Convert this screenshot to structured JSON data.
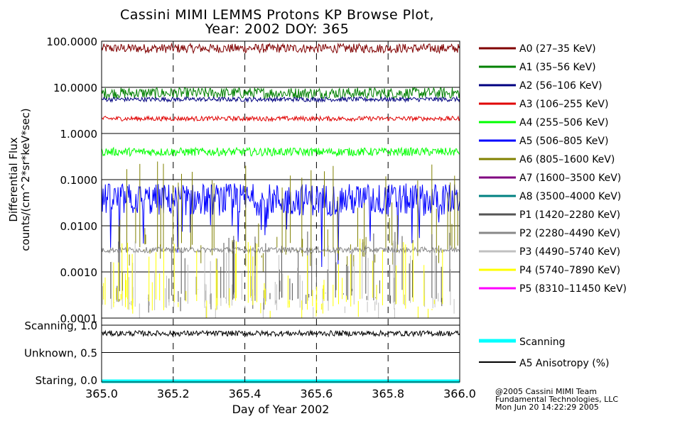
{
  "colors": {
    "background": "#ffffff",
    "axis": "#000000",
    "A0": "#800000",
    "A1": "#008000",
    "A2": "#000080",
    "A3": "#e00000",
    "A4": "#00ff00",
    "A5": "#0000ff",
    "A6": "#808000",
    "A7": "#800080",
    "A8": "#008080",
    "P1": "#555555",
    "P2": "#888888",
    "P3": "#c0c0c0",
    "P4": "#ffff00",
    "P5": "#ff00ff",
    "scanning": "#00ffff",
    "anisotropy": "#000000"
  },
  "chart_data": [
    {
      "type": "line",
      "title": "Cassini MIMI LEMMS Protons KP Browse Plot,",
      "subtitle": "Year: 2002 DOY: 365",
      "ylabel_line1": "Differential Flux",
      "ylabel_line2": "counts/(cm^2*sr*keV*sec)",
      "yscale": "log",
      "ylim": [
        0.0001,
        100
      ],
      "ytick_values": [
        100,
        10,
        1,
        0.1,
        0.01,
        0.001,
        0.0001
      ],
      "ytick_labels": [
        "100.0000",
        "10.0000",
        "1.0000",
        "0.1000",
        "0.0100",
        "0.0010",
        "0.0001"
      ],
      "xlim": [
        365.0,
        366.0
      ],
      "grid": true,
      "legend_position": "right",
      "series": [
        {
          "key": "A0",
          "name": "A0 (27–35 KeV)",
          "level": 70,
          "spread": 0.1
        },
        {
          "key": "A1",
          "name": "A1 (35–56 KeV)",
          "level": 7.5,
          "spread": 0.12
        },
        {
          "key": "A2",
          "name": "A2 (56–106 KeV)",
          "level": 5.5,
          "spread": 0.05
        },
        {
          "key": "A3",
          "name": "A3 (106–255 KeV)",
          "level": 2.1,
          "spread": 0.05
        },
        {
          "key": "A4",
          "name": "A4 (255–506 KeV)",
          "level": 0.4,
          "spread": 0.09
        },
        {
          "key": "A5",
          "name": "A5 (506–805 KeV)",
          "level": 0.04,
          "spread": 0.35
        },
        {
          "key": "A6",
          "name": "A6 (805–1600 KeV)",
          "level": 0.003,
          "spread": 0.4
        },
        {
          "key": "A7",
          "name": "A7 (1600–3500 KeV)",
          "level": null,
          "spread": 0
        },
        {
          "key": "A8",
          "name": "A8 (3500–4000 KeV)",
          "level": null,
          "spread": 0
        },
        {
          "key": "P1",
          "name": "P1 (1420–2280 KeV)",
          "level": 0.0003,
          "spread": 0.3
        },
        {
          "key": "P2",
          "name": "P2 (2280–4490 KeV)",
          "level": 0.003,
          "spread": 0.06
        },
        {
          "key": "P3",
          "name": "P3 (4490–5740 KeV)",
          "level": 0.0002,
          "spread": 0.3
        },
        {
          "key": "P4",
          "name": "P4 (5740–7890 KeV)",
          "level": 0.0002,
          "spread": 0.3
        },
        {
          "key": "P5",
          "name": "P5 (8310–11450 KeV)",
          "level": null,
          "spread": 0
        }
      ]
    },
    {
      "type": "line",
      "xlabel": "Day of Year 2002",
      "xlim": [
        365.0,
        366.0
      ],
      "xtick_values": [
        365.0,
        365.2,
        365.4,
        365.6,
        365.8,
        366.0
      ],
      "xtick_labels": [
        "365.0",
        "365.2",
        "365.4",
        "365.6",
        "365.8",
        "366.0"
      ],
      "ylim": [
        0,
        1.0
      ],
      "ytick_values": [
        1.0,
        0.5,
        0.0
      ],
      "ytick_labels": [
        "Scanning, 1.0",
        "Unknown, 0.5",
        "Staring, 0.0"
      ],
      "grid": true,
      "legend_position": "right",
      "series": [
        {
          "key": "scanning",
          "name": "Scanning",
          "value": 0.0
        },
        {
          "key": "anisotropy",
          "name": "A5 Anisotropy (%)",
          "level": 0.85,
          "spread": 0.05
        }
      ]
    }
  ],
  "credit": {
    "line1": "@2005 Cassini MIMI Team",
    "line2": "Fundamental Technologies, LLC",
    "line3": "Mon Jun 20 14:22:29 2005"
  }
}
